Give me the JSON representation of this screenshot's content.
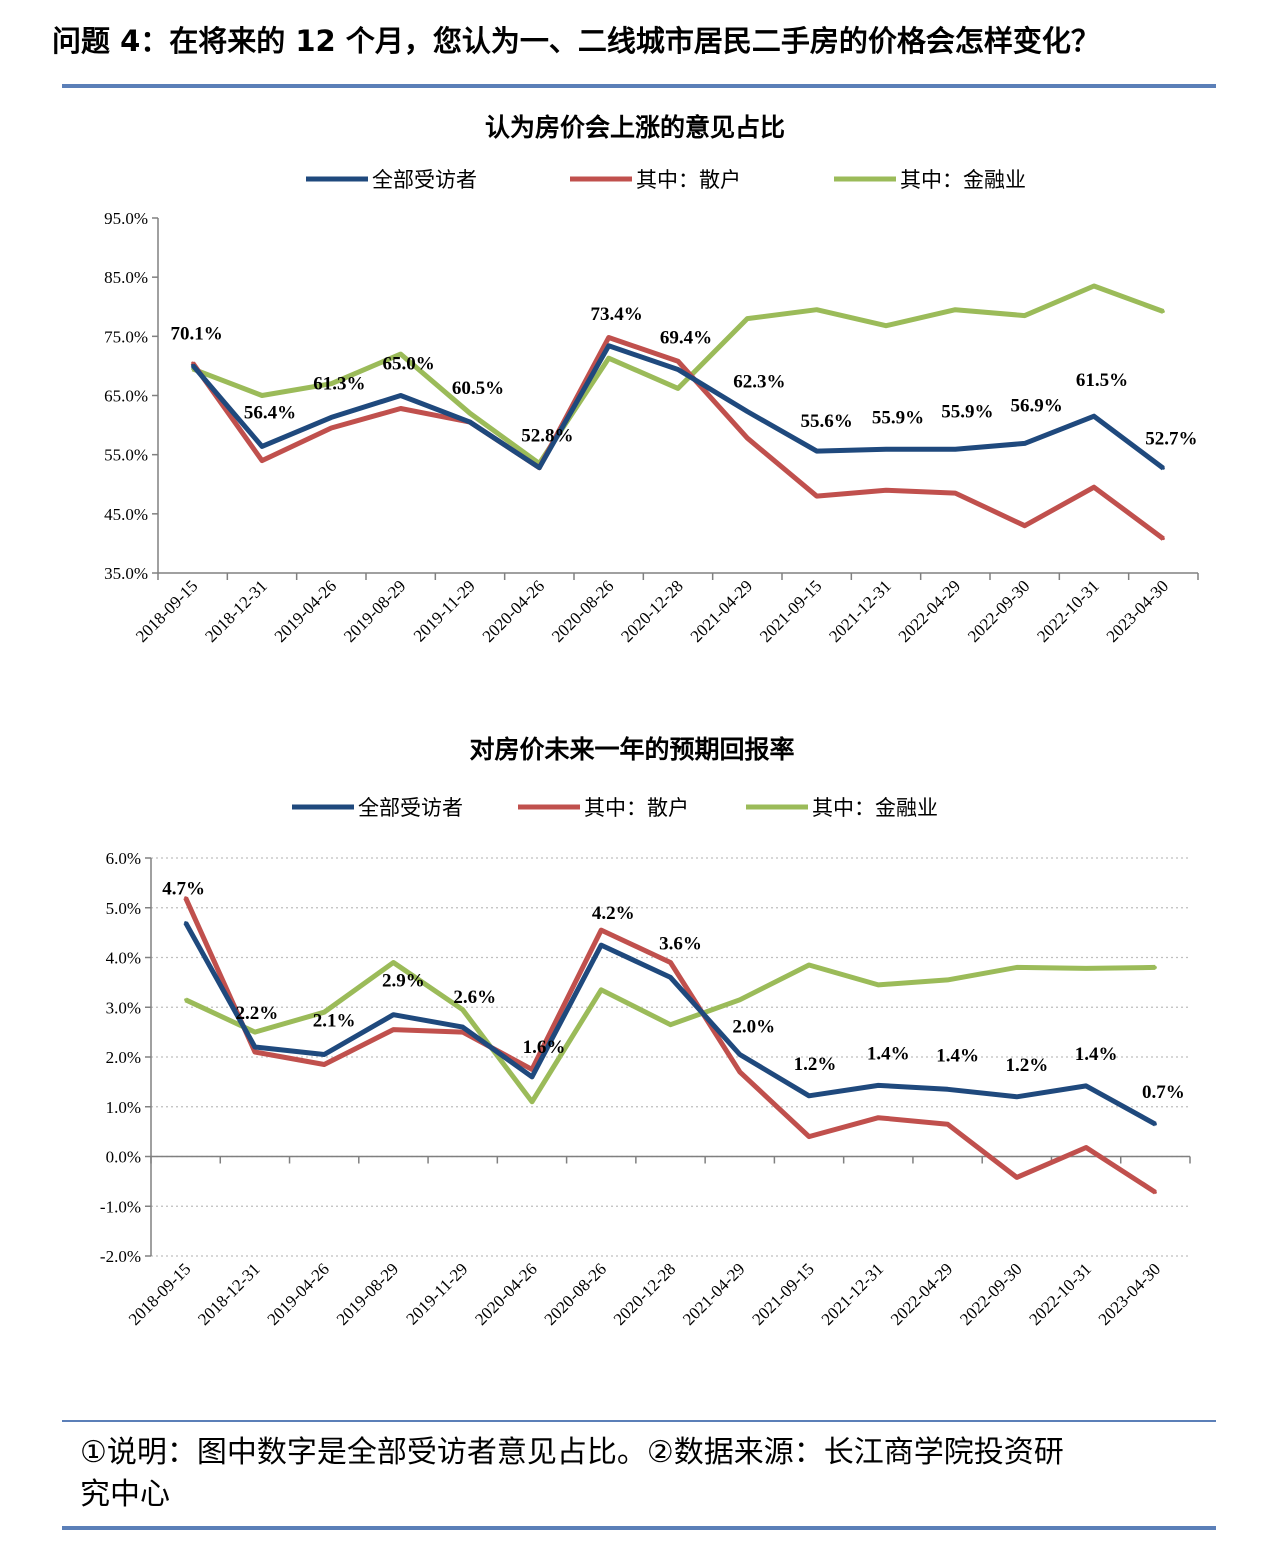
{
  "header": {
    "question": "问题 4：在将来的 12 个月，您认为一、二线城市居民二手房的价格会怎样变化？"
  },
  "footer": {
    "note_line1": "①说明：图中数字是全部受访者意见占比。②数据来源：长江商学院投资研",
    "note_line2": "究中心"
  },
  "colors": {
    "all": "#1f497d",
    "retail": "#c0504d",
    "finance": "#9bbb59",
    "rule": "#5b7fb8"
  },
  "chart_data": [
    {
      "type": "line",
      "title": "认为房价会上涨的意见占比",
      "categories": [
        "2018-09-15",
        "2018-12-31",
        "2019-04-26",
        "2019-08-29",
        "2019-11-29",
        "2020-04-26",
        "2020-08-26",
        "2020-12-28",
        "2021-04-29",
        "2021-09-15",
        "2021-12-31",
        "2022-04-29",
        "2022-09-30",
        "2022-10-31",
        "2023-04-30"
      ],
      "ylim": [
        35,
        95
      ],
      "yticks": [
        35,
        45,
        55,
        65,
        75,
        85,
        95
      ],
      "ytick_labels": [
        "35.0%",
        "45.0%",
        "55.0%",
        "65.0%",
        "75.0%",
        "85.0%",
        "95.0%"
      ],
      "grid": false,
      "legend_position": "top",
      "series": [
        {
          "name": "全部受访者",
          "color": "#1f497d",
          "values": [
            70.1,
            56.4,
            61.3,
            65.0,
            60.5,
            52.8,
            73.4,
            69.4,
            62.3,
            55.6,
            55.9,
            55.9,
            56.9,
            61.5,
            52.7
          ]
        },
        {
          "name": "其中：散户",
          "color": "#c0504d",
          "values": [
            70.5,
            54.0,
            59.5,
            62.8,
            60.5,
            52.8,
            74.8,
            70.8,
            57.8,
            48.0,
            49.0,
            48.5,
            43.0,
            49.5,
            40.8
          ]
        },
        {
          "name": "其中：金融业",
          "color": "#9bbb59",
          "values": [
            69.5,
            65.0,
            67.0,
            72.0,
            62.0,
            53.5,
            71.3,
            66.2,
            78.0,
            79.5,
            76.8,
            79.5,
            78.5,
            83.5,
            79.2
          ]
        }
      ],
      "data_labels": [
        "70.1%",
        "56.4%",
        "61.3%",
        "65.0%",
        "60.5%",
        "52.8%",
        "73.4%",
        "69.4%",
        "62.3%",
        "55.6%",
        "55.9%",
        "55.9%",
        "56.9%",
        "61.5%",
        "52.7%"
      ]
    },
    {
      "type": "line",
      "title": "对房价未来一年的预期回报率",
      "categories": [
        "2018-09-15",
        "2018-12-31",
        "2019-04-26",
        "2019-08-29",
        "2019-11-29",
        "2020-04-26",
        "2020-08-26",
        "2020-12-28",
        "2021-04-29",
        "2021-09-15",
        "2021-12-31",
        "2022-04-29",
        "2022-09-30",
        "2022-10-31",
        "2023-04-30"
      ],
      "ylim": [
        -2,
        6
      ],
      "yticks": [
        -2,
        -1,
        0,
        1,
        2,
        3,
        4,
        5,
        6
      ],
      "ytick_labels": [
        "-2.0%",
        "-1.0%",
        "0.0%",
        "1.0%",
        "2.0%",
        "3.0%",
        "4.0%",
        "5.0%",
        "6.0%"
      ],
      "grid": true,
      "legend_position": "top",
      "series": [
        {
          "name": "全部受访者",
          "color": "#1f497d",
          "values": [
            4.7,
            2.2,
            2.05,
            2.85,
            2.6,
            1.6,
            4.25,
            3.6,
            2.05,
            1.22,
            1.43,
            1.35,
            1.2,
            1.42,
            0.65
          ]
        },
        {
          "name": "其中：散户",
          "color": "#c0504d",
          "values": [
            5.2,
            2.1,
            1.85,
            2.55,
            2.5,
            1.75,
            4.55,
            3.9,
            1.7,
            0.4,
            0.78,
            0.65,
            -0.42,
            0.18,
            -0.72
          ]
        },
        {
          "name": "其中：金融业",
          "color": "#9bbb59",
          "values": [
            3.15,
            2.5,
            2.9,
            3.9,
            2.95,
            1.1,
            3.35,
            2.65,
            3.15,
            3.85,
            3.45,
            3.55,
            3.8,
            3.78,
            3.8
          ]
        }
      ],
      "data_labels": [
        "4.7%",
        "2.2%",
        "2.1%",
        "2.9%",
        "2.6%",
        "1.6%",
        "4.2%",
        "3.6%",
        "2.0%",
        "1.2%",
        "1.4%",
        "1.4%",
        "1.2%",
        "1.4%",
        "0.7%"
      ]
    }
  ]
}
